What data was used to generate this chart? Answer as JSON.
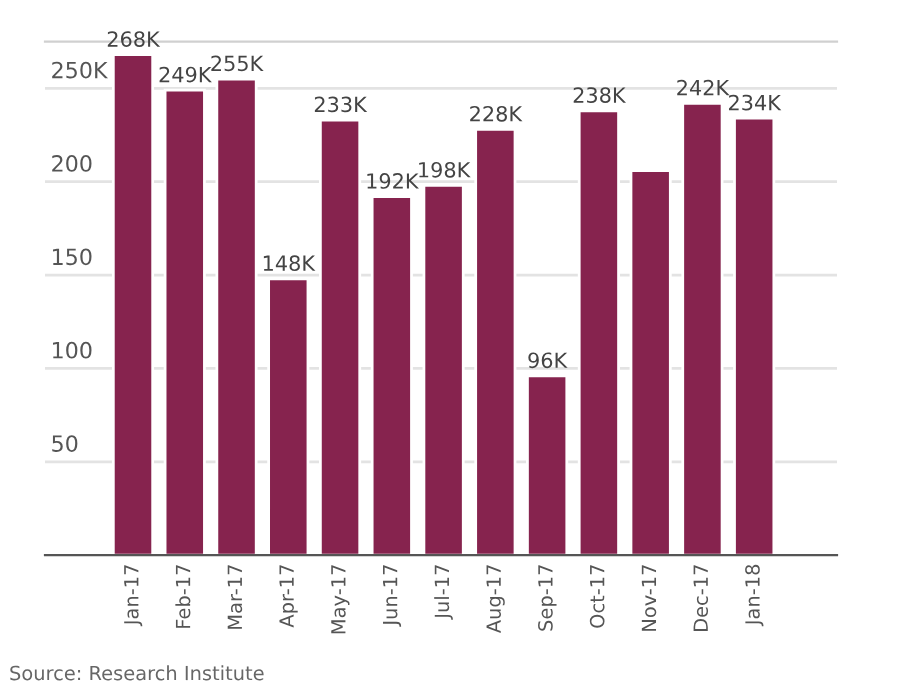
{
  "chart_data": {
    "type": "bar",
    "categories": [
      "Jan-17",
      "Feb-17",
      "Mar-17",
      "Apr-17",
      "May-17",
      "Jun-17",
      "Jul-17",
      "Aug-17",
      "Sep-17",
      "Oct-17",
      "Nov-17",
      "Dec-17",
      "Jan-18"
    ],
    "values": [
      268,
      249,
      255,
      148,
      233,
      192,
      198,
      228,
      96,
      238,
      206,
      242,
      234
    ],
    "value_labels": [
      "268K",
      "249K",
      "255K",
      "148K",
      "233K",
      "192K",
      "198K",
      "228K",
      "96K",
      "238K",
      null,
      "242K",
      "234K"
    ],
    "color": "#86234e",
    "ylim": [
      0,
      275
    ],
    "yticks": [
      50,
      100,
      150,
      200,
      {
        "value": 250,
        "label": "250K"
      }
    ],
    "grid": "y",
    "annotations": [
      "Source: Research Institute"
    ]
  }
}
